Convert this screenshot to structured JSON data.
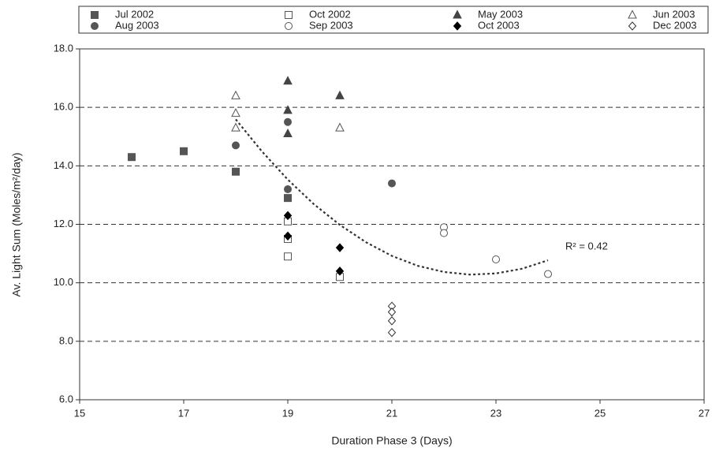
{
  "chart_data": {
    "type": "scatter",
    "x_label": "Duration Phase 3 (Days)",
    "y_label": "Av. Light Sum (Moles/m²/day)",
    "xlim": [
      15,
      27
    ],
    "xticks": [
      15,
      17,
      19,
      21,
      23,
      25,
      27
    ],
    "ylim": [
      6,
      18
    ],
    "yticks": [
      {
        "value": 6,
        "label": "6.0"
      },
      {
        "value": 8,
        "label": "8.0"
      },
      {
        "value": 10,
        "label": "10.0"
      },
      {
        "value": 12,
        "label": "12.0"
      },
      {
        "value": 14,
        "label": "14.0"
      },
      {
        "value": 16,
        "label": "16.0"
      },
      {
        "value": 18,
        "label": "18.0"
      }
    ],
    "grid": true,
    "legend": "top",
    "series": [
      {
        "name": "Jul 2002",
        "color": "#555555",
        "marker": "square",
        "filled": true,
        "x": [
          16,
          17,
          18,
          19
        ],
        "values": [
          14.3,
          14.5,
          13.8,
          12.9
        ]
      },
      {
        "name": "Oct 2002",
        "color": "#555555",
        "marker": "square",
        "filled": false,
        "x": [
          19,
          19,
          19,
          20
        ],
        "values": [
          12.1,
          11.5,
          10.9,
          10.2
        ]
      },
      {
        "name": "May 2003",
        "color": "#444444",
        "marker": "triangle",
        "filled": true,
        "x": [
          19,
          19,
          19,
          20
        ],
        "values": [
          16.9,
          15.9,
          15.1,
          16.4
        ]
      },
      {
        "name": "Jun 2003",
        "color": "#555555",
        "marker": "triangle",
        "filled": false,
        "x": [
          18,
          18,
          18,
          20
        ],
        "values": [
          16.4,
          15.8,
          15.3,
          15.3
        ]
      },
      {
        "name": "Aug 2003",
        "color": "#555555",
        "marker": "circle",
        "filled": true,
        "x": [
          18,
          19,
          19,
          21
        ],
        "values": [
          14.7,
          15.5,
          13.2,
          13.4
        ]
      },
      {
        "name": "Sep 2003",
        "color": "#555555",
        "marker": "circle",
        "filled": false,
        "x": [
          22,
          22,
          23,
          24
        ],
        "values": [
          11.9,
          11.7,
          10.8,
          10.3
        ]
      },
      {
        "name": "Oct 2003",
        "color": "#000000",
        "marker": "diamond",
        "filled": true,
        "x": [
          19,
          19,
          20,
          20
        ],
        "values": [
          12.3,
          11.6,
          11.2,
          10.4
        ]
      },
      {
        "name": "Dec 2003",
        "color": "#333333",
        "marker": "diamond",
        "filled": false,
        "x": [
          21,
          21,
          21,
          21
        ],
        "values": [
          9.2,
          9.0,
          8.7,
          8.3
        ]
      }
    ],
    "trendline": {
      "color": "#333333",
      "x": [
        18,
        18.5,
        19,
        19.5,
        20,
        20.5,
        21,
        21.5,
        22,
        22.5,
        23,
        23.5,
        24
      ],
      "values": [
        15.59,
        14.5,
        13.53,
        12.69,
        11.98,
        11.39,
        10.92,
        10.58,
        10.37,
        10.28,
        10.32,
        10.48,
        10.77
      ],
      "label": "R² = 0.42"
    }
  }
}
